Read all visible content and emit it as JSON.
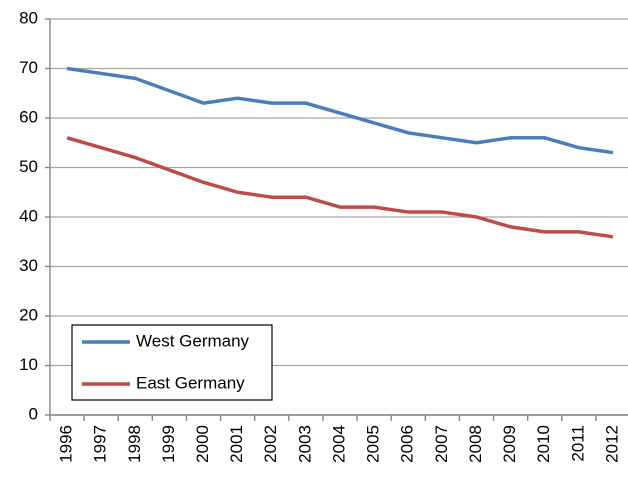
{
  "chart_data": {
    "type": "line",
    "categories": [
      "1996",
      "1997",
      "1998",
      "1999",
      "2000",
      "2001",
      "2002",
      "2003",
      "2004",
      "2005",
      "2006",
      "2007",
      "2008",
      "2009",
      "2010",
      "2011",
      "2012"
    ],
    "series": [
      {
        "name": "West Germany",
        "color": "#4a7ebb",
        "values": [
          70,
          69,
          68,
          65.5,
          63,
          64,
          63,
          63,
          61,
          59,
          57,
          56,
          55,
          56,
          56,
          54,
          53
        ]
      },
      {
        "name": "East Germany",
        "color": "#be4b48",
        "values": [
          56,
          54,
          52,
          49.5,
          47,
          45,
          44,
          44,
          42,
          42,
          41,
          41,
          40,
          38,
          37,
          37,
          36
        ]
      }
    ],
    "ylim": [
      0,
      80
    ],
    "yticks": [
      0,
      10,
      20,
      30,
      40,
      50,
      60,
      70,
      80
    ],
    "grid": true,
    "legend": "lower left"
  }
}
